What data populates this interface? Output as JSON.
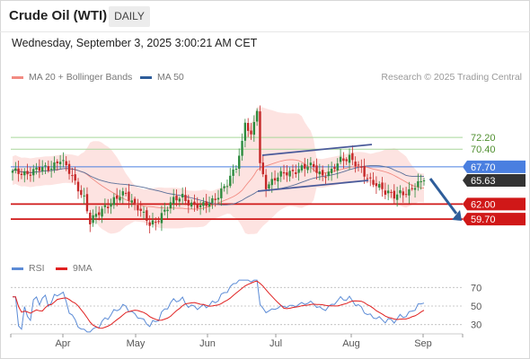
{
  "header": {
    "title": "Crude Oil (WTI)",
    "timeframe": "DAILY",
    "datetime": "Wednesday, September 3, 2025 3:00:21 AM CET"
  },
  "legend_top": {
    "items": [
      {
        "label": "MA 20 + Bollinger Bands",
        "color": "#f28b82"
      },
      {
        "label": "MA 50",
        "color": "#2e5d9a"
      }
    ],
    "credit": "Research © 2025 Trading Central"
  },
  "legend_bottom": {
    "items": [
      {
        "label": "RSI",
        "color": "#5b8bd6"
      },
      {
        "label": "9MA",
        "color": "#e02020"
      }
    ]
  },
  "colors": {
    "up_candle": "#2e8b3e",
    "down_candle": "#c62828",
    "resistance_line": "#a8d69a",
    "pivot_line": "#4a7fe0",
    "support_line": "#d01818",
    "bollinger_fill": "#fde0de",
    "current_price_badge": "#333333",
    "forecast_arrow": "#2e5d9a"
  },
  "chart_data": [
    {
      "type": "candlestick",
      "title": "Crude Oil (WTI)",
      "timeframe": "DAILY",
      "x_tick_labels": [
        "Apr",
        "May",
        "Jun",
        "Jul",
        "Aug",
        "Sep"
      ],
      "ylim": [
        54.5,
        79.5
      ],
      "levels": [
        {
          "label": "72.20",
          "value": 72.2,
          "kind": "resistance"
        },
        {
          "label": "70.40",
          "value": 70.4,
          "kind": "resistance"
        },
        {
          "label": "67.70",
          "value": 67.7,
          "kind": "pivot"
        },
        {
          "label": "65.63",
          "value": 65.63,
          "kind": "last_price"
        },
        {
          "label": "62.00",
          "value": 62.0,
          "kind": "support"
        },
        {
          "label": "59.70",
          "value": 59.7,
          "kind": "support"
        }
      ],
      "indicators": [
        "MA 20 + Bollinger Bands",
        "MA 50"
      ],
      "forecast": "down"
    },
    {
      "type": "line",
      "indicator": "RSI",
      "ylim": [
        20,
        80
      ],
      "y_ticks": [
        70,
        50,
        30
      ],
      "series_names": [
        "RSI",
        "9MA"
      ]
    }
  ]
}
